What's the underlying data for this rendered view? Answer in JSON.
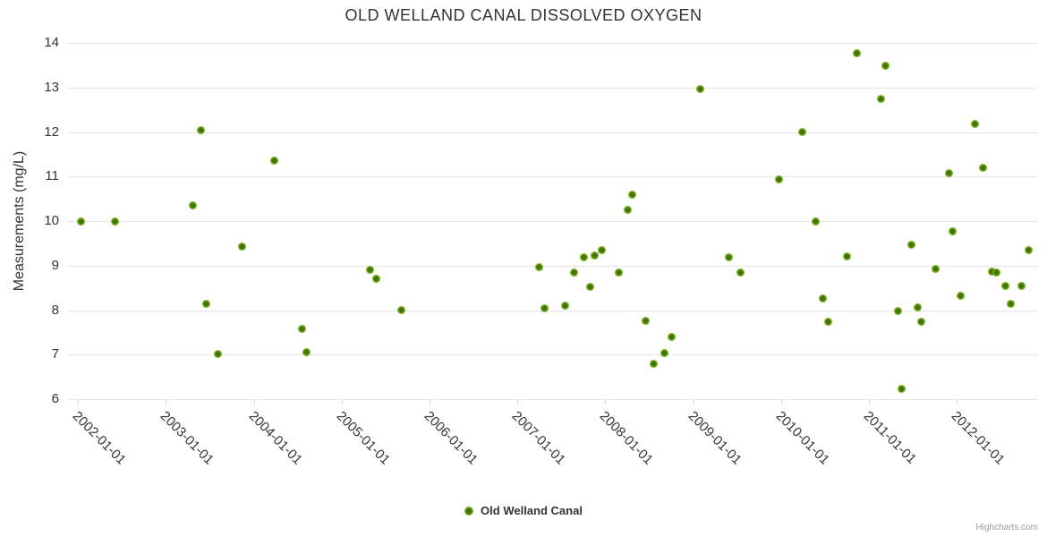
{
  "chart_data": {
    "type": "scatter",
    "title": "OLD WELLAND CANAL DISSOLVED OXYGEN",
    "xlabel": "",
    "ylabel": "Measurements (mg/L)",
    "ylim": [
      6,
      14
    ],
    "y_ticks": [
      6,
      7,
      8,
      9,
      10,
      11,
      12,
      13,
      14
    ],
    "x_ticks": [
      "2002-01-01",
      "2003-01-01",
      "2004-01-01",
      "2005-01-01",
      "2006-01-01",
      "2007-01-01",
      "2008-01-01",
      "2009-01-01",
      "2010-01-01",
      "2011-01-01",
      "2012-01-01"
    ],
    "grid": true,
    "legend_position": "bottom",
    "series": [
      {
        "name": "Old Welland Canal",
        "points": [
          {
            "date": "2002-01-12",
            "value": 10.0
          },
          {
            "date": "2002-06-02",
            "value": 10.0
          },
          {
            "date": "2003-04-23",
            "value": 10.35
          },
          {
            "date": "2003-05-26",
            "value": 12.05
          },
          {
            "date": "2003-06-16",
            "value": 8.15
          },
          {
            "date": "2003-08-05",
            "value": 7.02
          },
          {
            "date": "2003-11-13",
            "value": 9.43
          },
          {
            "date": "2004-03-26",
            "value": 11.36
          },
          {
            "date": "2004-07-20",
            "value": 7.58
          },
          {
            "date": "2004-08-07",
            "value": 7.06
          },
          {
            "date": "2005-04-29",
            "value": 8.9
          },
          {
            "date": "2005-05-22",
            "value": 8.7
          },
          {
            "date": "2005-09-04",
            "value": 8.0
          },
          {
            "date": "2007-03-30",
            "value": 8.97
          },
          {
            "date": "2007-04-21",
            "value": 8.05
          },
          {
            "date": "2007-07-18",
            "value": 8.11
          },
          {
            "date": "2007-08-24",
            "value": 8.84
          },
          {
            "date": "2007-10-05",
            "value": 9.18
          },
          {
            "date": "2007-10-28",
            "value": 8.53
          },
          {
            "date": "2007-11-17",
            "value": 9.22
          },
          {
            "date": "2007-12-16",
            "value": 9.34
          },
          {
            "date": "2008-02-25",
            "value": 8.84
          },
          {
            "date": "2008-04-03",
            "value": 10.26
          },
          {
            "date": "2008-04-20",
            "value": 10.6
          },
          {
            "date": "2008-06-15",
            "value": 7.75
          },
          {
            "date": "2008-07-21",
            "value": 6.8
          },
          {
            "date": "2008-09-02",
            "value": 7.04
          },
          {
            "date": "2008-10-03",
            "value": 7.39
          },
          {
            "date": "2009-02-01",
            "value": 12.96
          },
          {
            "date": "2009-05-27",
            "value": 9.18
          },
          {
            "date": "2009-07-14",
            "value": 8.84
          },
          {
            "date": "2009-12-22",
            "value": 10.93
          },
          {
            "date": "2010-03-28",
            "value": 12.0
          },
          {
            "date": "2010-05-22",
            "value": 10.0
          },
          {
            "date": "2010-06-21",
            "value": 8.27
          },
          {
            "date": "2010-07-15",
            "value": 7.73
          },
          {
            "date": "2010-10-03",
            "value": 9.2
          },
          {
            "date": "2010-11-10",
            "value": 13.77
          },
          {
            "date": "2011-02-20",
            "value": 12.75
          },
          {
            "date": "2011-03-08",
            "value": 13.48
          },
          {
            "date": "2011-04-30",
            "value": 7.97
          },
          {
            "date": "2011-05-14",
            "value": 6.24
          },
          {
            "date": "2011-06-26",
            "value": 9.46
          },
          {
            "date": "2011-07-22",
            "value": 8.07
          },
          {
            "date": "2011-08-07",
            "value": 7.73
          },
          {
            "date": "2011-10-04",
            "value": 8.92
          },
          {
            "date": "2011-11-29",
            "value": 11.07
          },
          {
            "date": "2011-12-13",
            "value": 9.76
          },
          {
            "date": "2012-01-18",
            "value": 8.32
          },
          {
            "date": "2012-03-14",
            "value": 12.18
          },
          {
            "date": "2012-04-17",
            "value": 11.2
          },
          {
            "date": "2012-05-24",
            "value": 8.87
          },
          {
            "date": "2012-06-13",
            "value": 8.84
          },
          {
            "date": "2012-07-19",
            "value": 8.54
          },
          {
            "date": "2012-08-14",
            "value": 8.14
          },
          {
            "date": "2012-09-28",
            "value": 8.55
          },
          {
            "date": "2012-10-24",
            "value": 9.34
          }
        ]
      }
    ]
  },
  "legend": {
    "label": "Old Welland Canal"
  },
  "credits": {
    "label": "Highcharts.com"
  },
  "colors": {
    "text": "#333333",
    "grid": "#e6e6e6",
    "axis": "#ccd6eb",
    "credits": "#999999",
    "marker_inner": "#3c7204",
    "marker_outer": "#7cb11a",
    "marker_outer_edge": "#8ec42c"
  }
}
